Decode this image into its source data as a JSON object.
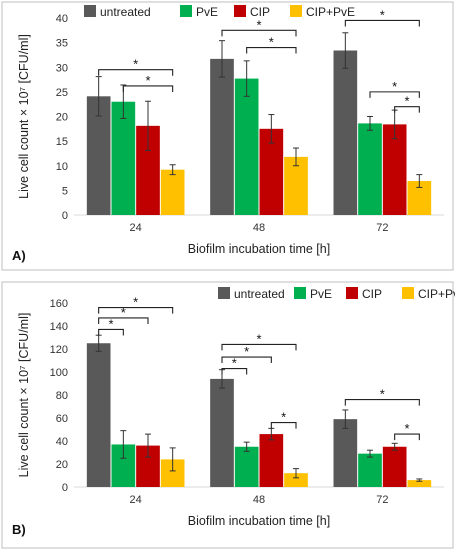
{
  "chart_data": [
    {
      "panel": "A)",
      "type": "bar",
      "categories": [
        "24",
        "48",
        "72"
      ],
      "xlabel": "Biofilm incubation time [h]",
      "ylabel": "Live cell count × 10⁷ [CFU/ml]",
      "ylim": [
        0,
        40
      ],
      "yticks": [
        0,
        5,
        10,
        15,
        20,
        25,
        30,
        35,
        40
      ],
      "legend_position": "top",
      "series": [
        {
          "name": "untreated",
          "color": "#595959",
          "values": [
            24.1,
            31.7,
            33.4
          ],
          "errors": [
            4.0,
            3.7,
            3.6
          ]
        },
        {
          "name": "PvE",
          "color": "#00b050",
          "values": [
            23.0,
            27.7,
            18.6
          ],
          "errors": [
            3.4,
            3.6,
            1.4
          ]
        },
        {
          "name": "CIP",
          "color": "#c00000",
          "values": [
            18.1,
            17.5,
            18.4
          ],
          "errors": [
            5.0,
            2.9,
            2.9
          ]
        },
        {
          "name": "CIP+PvE",
          "color": "#ffc000",
          "values": [
            9.2,
            11.8,
            6.9
          ],
          "errors": [
            1.0,
            1.8,
            1.3
          ]
        }
      ],
      "significance": [
        {
          "group": 0,
          "from": 0,
          "to": 3,
          "y": 29.5,
          "label": "*"
        },
        {
          "group": 0,
          "from": 1,
          "to": 3,
          "y": 26.2,
          "label": "*"
        },
        {
          "group": 1,
          "from": 0,
          "to": 3,
          "y": 37.5,
          "label": "*"
        },
        {
          "group": 1,
          "from": 1,
          "to": 3,
          "y": 34.0,
          "label": "*"
        },
        {
          "group": 2,
          "from": 0,
          "to": 3,
          "y": 39.5,
          "label": "*"
        },
        {
          "group": 2,
          "from": 1,
          "to": 3,
          "y": 25.0,
          "label": "*"
        },
        {
          "group": 2,
          "from": 2,
          "to": 3,
          "y": 22.0,
          "label": "*"
        }
      ]
    },
    {
      "panel": "B)",
      "type": "bar",
      "categories": [
        "24",
        "48",
        "72"
      ],
      "xlabel": "Biofilm incubation time [h]",
      "ylabel": "Live cell count × 10⁷ [CFU/ml]",
      "ylim": [
        0,
        160
      ],
      "yticks": [
        0,
        20,
        40,
        60,
        80,
        100,
        120,
        140,
        160
      ],
      "legend_position": "top-right",
      "series": [
        {
          "name": "untreated",
          "color": "#595959",
          "values": [
            125,
            94,
            59
          ],
          "errors": [
            7,
            8,
            8
          ]
        },
        {
          "name": "PvE",
          "color": "#00b050",
          "values": [
            37,
            35,
            29
          ],
          "errors": [
            12,
            4,
            3
          ]
        },
        {
          "name": "CIP",
          "color": "#c00000",
          "values": [
            36,
            46,
            35
          ],
          "errors": [
            10,
            5,
            3
          ]
        },
        {
          "name": "CIP+PvE",
          "color": "#ffc000",
          "values": [
            24,
            12,
            6
          ],
          "errors": [
            10,
            4,
            1
          ]
        }
      ],
      "significance": [
        {
          "group": 0,
          "from": 0,
          "to": 3,
          "y": 156,
          "label": "*"
        },
        {
          "group": 0,
          "from": 0,
          "to": 2,
          "y": 147,
          "label": "*"
        },
        {
          "group": 0,
          "from": 0,
          "to": 1,
          "y": 137,
          "label": "*"
        },
        {
          "group": 1,
          "from": 0,
          "to": 3,
          "y": 124,
          "label": "*"
        },
        {
          "group": 1,
          "from": 0,
          "to": 2,
          "y": 113,
          "label": "*"
        },
        {
          "group": 1,
          "from": 0,
          "to": 1,
          "y": 103,
          "label": "*"
        },
        {
          "group": 1,
          "from": 2,
          "to": 3,
          "y": 56,
          "label": "*"
        },
        {
          "group": 2,
          "from": 0,
          "to": 3,
          "y": 76,
          "label": "*"
        },
        {
          "group": 2,
          "from": 2,
          "to": 3,
          "y": 46,
          "label": "*"
        }
      ]
    }
  ]
}
